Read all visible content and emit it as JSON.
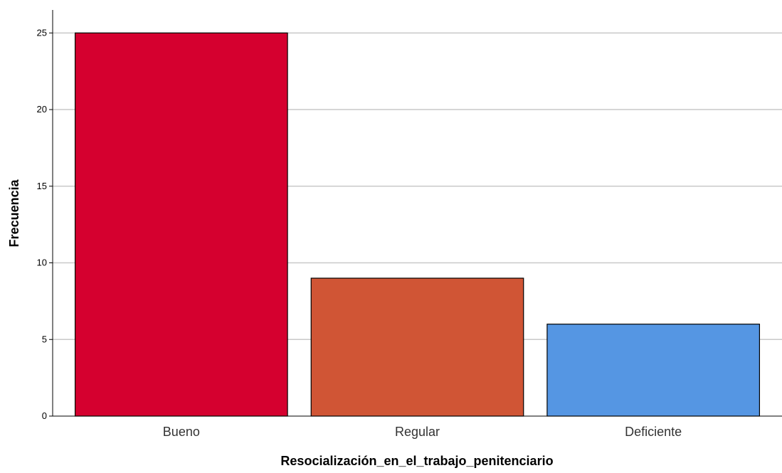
{
  "chart_data": {
    "type": "bar",
    "categories": [
      "Bueno",
      "Regular",
      "Deficiente"
    ],
    "values": [
      25,
      9,
      6
    ],
    "xlabel": "Resocialización_en_el_trabajo_penitenciario",
    "ylabel": "Frecuencia",
    "ylim": [
      0,
      26.5
    ],
    "yticks": [
      0,
      5,
      10,
      15,
      20,
      25
    ],
    "grid": true,
    "colors": [
      "#d5002f",
      "#d05535",
      "#5596e3"
    ]
  }
}
